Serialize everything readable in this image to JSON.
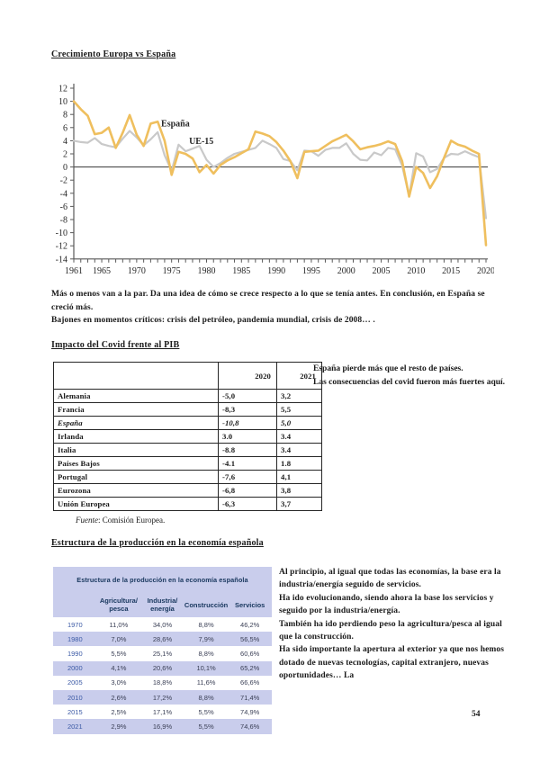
{
  "page": {
    "number": "54"
  },
  "section1": {
    "title": "Crecimiento Europa vs España",
    "para1": "Más o menos van a la par. Da una idea de cómo se crece respecto a lo que se tenía antes. En conclusión, en España se creció más.",
    "para2": "Bajones en momentos críticos: crisis del petróleo, pandemia mundial, crisis de 2008… ."
  },
  "chart_data": {
    "type": "line",
    "title": "Crecimiento Europa vs España",
    "xlabel": "",
    "ylabel": "",
    "x_start": 1961,
    "x_end": 2020,
    "x_ticks": [
      1961,
      1965,
      1970,
      1975,
      1980,
      1985,
      1990,
      1995,
      2000,
      2005,
      2010,
      2015,
      2020
    ],
    "ylim": [
      -14,
      12
    ],
    "y_ticks": [
      12,
      10,
      8,
      6,
      4,
      2,
      0,
      -2,
      -4,
      -6,
      -8,
      -10,
      -12,
      -14
    ],
    "grid": false,
    "legend_position": "inline-labels",
    "axis_color": "#595959",
    "series": [
      {
        "name": "España",
        "color": "#EFBF5E",
        "values": [
          10.0,
          8.8,
          7.8,
          5.0,
          5.2,
          6.0,
          2.9,
          5.2,
          7.9,
          4.9,
          3.2,
          6.6,
          6.9,
          4.0,
          -1.2,
          2.3,
          2.0,
          1.3,
          -0.8,
          0.3,
          -1.0,
          0.3,
          1.0,
          1.5,
          2.1,
          2.7,
          5.4,
          5.1,
          4.7,
          3.8,
          2.5,
          0.9,
          -1.7,
          2.3,
          2.4,
          2.5,
          3.2,
          3.9,
          4.4,
          4.9,
          3.9,
          2.7,
          3.0,
          3.2,
          3.5,
          3.9,
          3.5,
          0.9,
          -4.5,
          0.0,
          -0.9,
          -3.2,
          -1.4,
          1.4,
          4.0,
          3.4,
          3.1,
          2.5,
          2.0,
          -11.9
        ]
      },
      {
        "name": "UE-15",
        "color": "#C9C9C9",
        "values": [
          4.0,
          3.8,
          3.7,
          4.4,
          3.5,
          3.2,
          3.0,
          4.3,
          5.5,
          4.5,
          3.3,
          4.2,
          5.3,
          1.8,
          -0.6,
          3.4,
          2.4,
          2.8,
          3.2,
          1.1,
          0.0,
          0.6,
          1.4,
          2.0,
          2.3,
          2.6,
          2.9,
          4.0,
          3.5,
          2.9,
          1.2,
          0.9,
          -0.5,
          2.5,
          2.4,
          1.7,
          2.6,
          2.9,
          2.9,
          3.6,
          2.0,
          1.1,
          1.0,
          2.2,
          1.8,
          2.9,
          2.7,
          0.2,
          -4.4,
          2.1,
          1.6,
          -0.8,
          -0.3,
          1.4,
          2.0,
          1.9,
          2.4,
          1.9,
          1.5,
          -7.8
        ]
      }
    ],
    "labels": [
      {
        "text": "España",
        "year": 1973.5,
        "value": 6.2
      },
      {
        "text": "UE-15",
        "year": 1977.5,
        "value": 3.5
      }
    ]
  },
  "section2": {
    "title": "Impacto del Covid frente al PIB",
    "table": {
      "headers": [
        "",
        "2020",
        "2021"
      ],
      "rows": [
        {
          "name": "Alemania",
          "v2020": "-5,0",
          "v2021": "3,2",
          "italic": false
        },
        {
          "name": "Francia",
          "v2020": "-8,3",
          "v2021": "5,5",
          "italic": false
        },
        {
          "name": "España",
          "v2020": "-10,8",
          "v2021": "5,0",
          "italic": true
        },
        {
          "name": "Irlanda",
          "v2020": "3.0",
          "v2021": "3.4",
          "italic": false
        },
        {
          "name": "Italia",
          "v2020": "-8.8",
          "v2021": "3.4",
          "italic": false
        },
        {
          "name": "Países Bajos",
          "v2020": "-4.1",
          "v2021": "1.8",
          "italic": false
        },
        {
          "name": "Portugal",
          "v2020": "-7,6",
          "v2021": "4,1",
          "italic": false
        },
        {
          "name": "Eurozona",
          "v2020": "-6,8",
          "v2021": "3,8",
          "italic": false
        },
        {
          "name": "Unión Europea",
          "v2020": "-6,3",
          "v2021": "3,7",
          "italic": false
        }
      ]
    },
    "side_note": {
      "p1": "España pierde más que el resto de países.",
      "p2": "Las consecuencias del covid fueron más fuertes aquí."
    },
    "source_label": "Fuente",
    "source_rest": ": Comisión Europea."
  },
  "section3": {
    "title": "Estructura de la producción en la economía española",
    "table": {
      "caption": "Estructura de la producción en la economía española",
      "col_headers": [
        "Agricultura/ pesca",
        "Industria/ energía",
        "Construcción",
        "Servicios"
      ],
      "rows": [
        {
          "year": "1970",
          "values": [
            "11,0%",
            "34,0%",
            "8,8%",
            "46,2%"
          ]
        },
        {
          "year": "1980",
          "values": [
            "7,0%",
            "28,6%",
            "7,9%",
            "56,5%"
          ]
        },
        {
          "year": "1990",
          "values": [
            "5,5%",
            "25,1%",
            "8,8%",
            "60,6%"
          ]
        },
        {
          "year": "2000",
          "values": [
            "4,1%",
            "20,6%",
            "10,1%",
            "65,2%"
          ]
        },
        {
          "year": "2005",
          "values": [
            "3,0%",
            "18,8%",
            "11,6%",
            "66,6%"
          ]
        },
        {
          "year": "2010",
          "values": [
            "2,6%",
            "17,2%",
            "8,8%",
            "71,4%"
          ]
        },
        {
          "year": "2015",
          "values": [
            "2,5%",
            "17,1%",
            "5,5%",
            "74,9%"
          ]
        },
        {
          "year": "2021",
          "values": [
            "2,9%",
            "16,9%",
            "5,5%",
            "74,6%"
          ]
        }
      ]
    },
    "paragraphs": [
      "Al principio, al igual que todas las economías, la base era la industria/energía seguido de servicios.",
      "Ha ido evolucionando, siendo ahora la base los servicios y seguido por la industria/energía.",
      "También ha ido perdiendo peso la agricultura/pesca al igual que la construcción.",
      "Ha sido importante la apertura al exterior ya que nos hemos dotado de nuevas tecnologías, capital extranjero, nuevas oportunidades… La"
    ]
  }
}
